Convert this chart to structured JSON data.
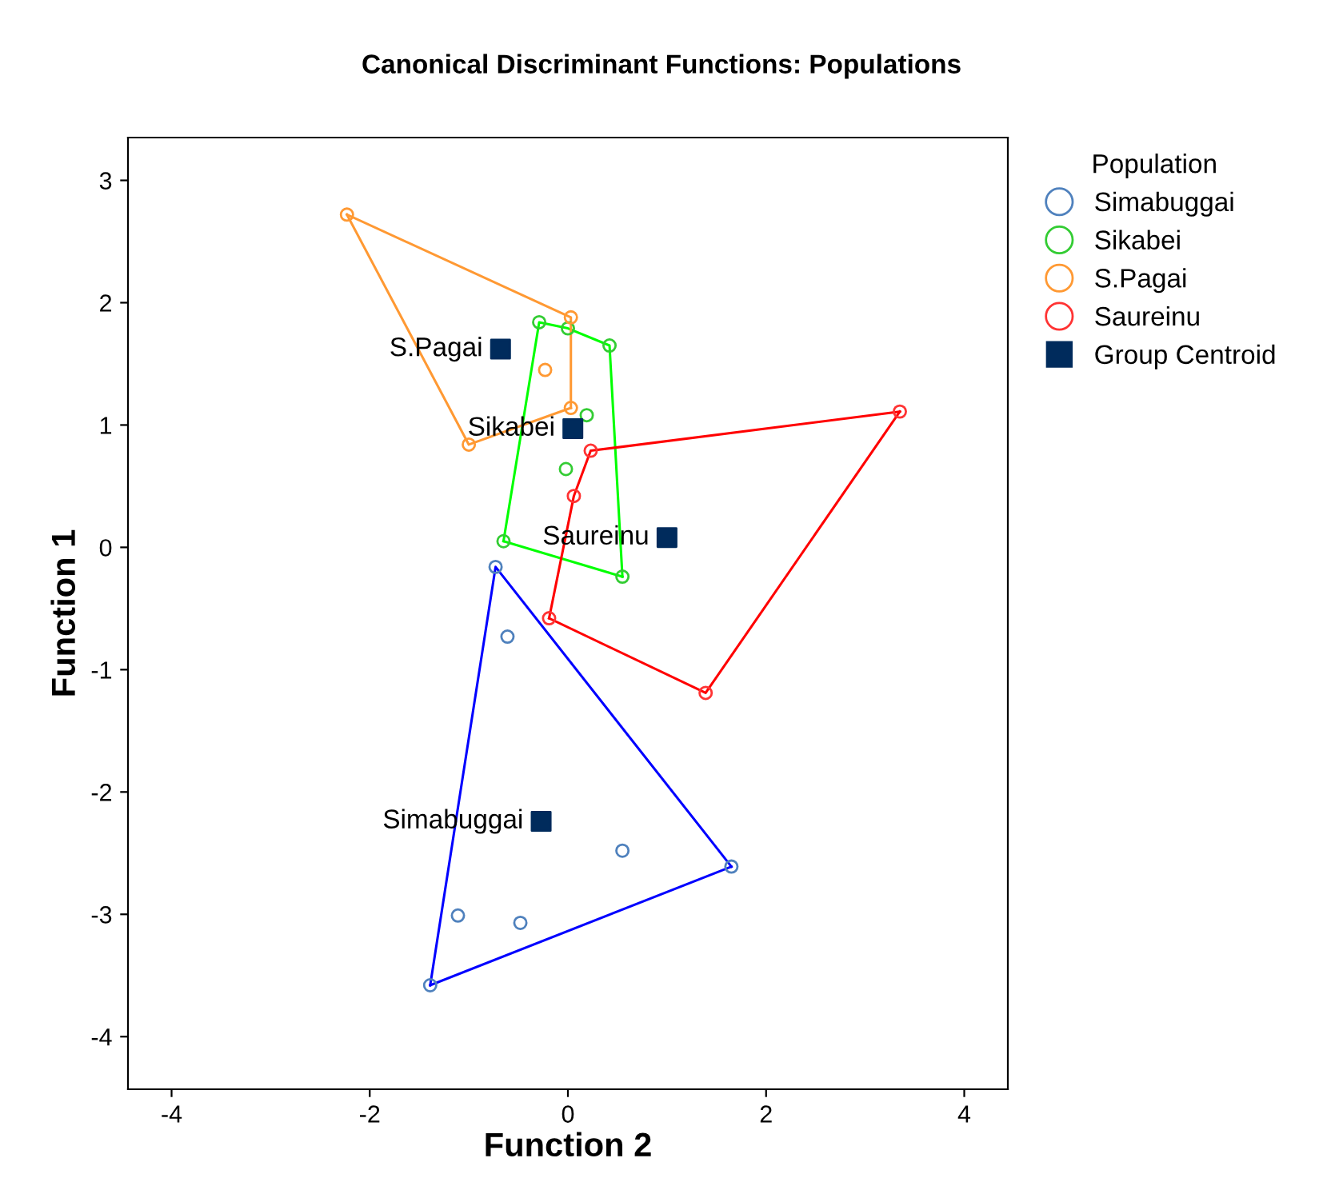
{
  "chart_data": {
    "type": "scatter",
    "title": "Canonical Discriminant Functions: Populations",
    "xlabel": "Function 2",
    "ylabel": "Function 1",
    "legend_title": "Population",
    "legend": "right",
    "grid": false,
    "xlim": [
      -4.44,
      4.44
    ],
    "ylim": [
      -4.43,
      3.35
    ],
    "xticks": [
      -4,
      -2,
      0,
      2,
      4
    ],
    "yticks": [
      -4,
      -3,
      -2,
      -1,
      0,
      1,
      2,
      3
    ],
    "series": [
      {
        "name": "Simabuggai",
        "marker": "circle",
        "color": "#4f81bd",
        "x": [
          -0.73,
          -0.61,
          1.65,
          0.55,
          -1.11,
          -0.48,
          -1.39
        ],
        "values": [
          -0.16,
          -0.73,
          -2.61,
          -2.48,
          -3.01,
          -3.07,
          -3.58
        ]
      },
      {
        "name": "Sikabei",
        "marker": "circle",
        "color": "#33cc33",
        "x": [
          -0.29,
          0.0,
          0.42,
          0.19,
          -0.02,
          -0.65,
          0.55
        ],
        "values": [
          1.84,
          1.79,
          1.65,
          1.08,
          0.64,
          0.05,
          -0.24
        ]
      },
      {
        "name": "S.Pagai",
        "marker": "circle",
        "color": "#ff9933",
        "x": [
          -2.23,
          0.03,
          0.03,
          -1.0,
          -0.23
        ],
        "values": [
          2.72,
          1.88,
          1.14,
          0.84,
          1.45
        ]
      },
      {
        "name": "Saureinu",
        "marker": "circle",
        "color": "#ff3333",
        "x": [
          3.35,
          0.23,
          0.06,
          -0.19,
          1.39
        ],
        "values": [
          1.11,
          0.79,
          0.42,
          -0.58,
          -1.19
        ]
      },
      {
        "name": "Group Centroid",
        "marker": "square",
        "color": "#002b5c",
        "x": [
          -0.27,
          0.05,
          -0.68,
          1.0
        ],
        "values": [
          -2.24,
          0.97,
          1.62,
          0.08
        ]
      },
      {
        "type": "line",
        "marker": "none",
        "color": "#0000ff",
        "x": [
          -1.39,
          -0.73,
          1.65
        ],
        "values": [
          -3.58,
          -0.16,
          -2.61
        ]
      },
      {
        "type": "line",
        "marker": "none",
        "color": "#0000ff",
        "x": [
          -1.39,
          1.65
        ],
        "values": [
          -3.58,
          -2.61
        ]
      },
      {
        "type": "line",
        "marker": "none",
        "color": "#00ff00",
        "x": [
          -0.65,
          -0.29,
          0.0,
          0.42,
          0.55
        ],
        "values": [
          0.05,
          1.84,
          1.79,
          1.65,
          -0.24
        ]
      },
      {
        "type": "line",
        "marker": "none",
        "color": "#00ff00",
        "x": [
          -0.65,
          0.55
        ],
        "values": [
          0.05,
          -0.24
        ]
      },
      {
        "type": "line",
        "marker": "none",
        "color": "#ff9933",
        "x": [
          -2.23,
          0.03,
          0.03
        ],
        "values": [
          2.72,
          1.88,
          1.14
        ]
      },
      {
        "type": "line",
        "marker": "none",
        "color": "#ff9933",
        "x": [
          -2.23,
          -1.0,
          0.03
        ],
        "values": [
          2.72,
          0.84,
          1.14
        ]
      },
      {
        "type": "line",
        "marker": "none",
        "color": "#ff0000",
        "x": [
          -0.19,
          0.06,
          0.23,
          3.35
        ],
        "values": [
          -0.58,
          0.42,
          0.79,
          1.11
        ]
      },
      {
        "type": "line",
        "marker": "none",
        "color": "#ff0000",
        "x": [
          -0.19,
          1.39,
          3.35
        ],
        "values": [
          -0.58,
          -1.19,
          1.11
        ]
      }
    ],
    "annotations": [
      {
        "text": "Simabuggai",
        "x": -0.27,
        "y": -2.24
      },
      {
        "text": "Sikabei",
        "x": 0.05,
        "y": 0.97
      },
      {
        "text": "S.Pagai",
        "x": -0.68,
        "y": 1.62
      },
      {
        "text": "Saureinu",
        "x": 1.0,
        "y": 0.08
      }
    ]
  }
}
